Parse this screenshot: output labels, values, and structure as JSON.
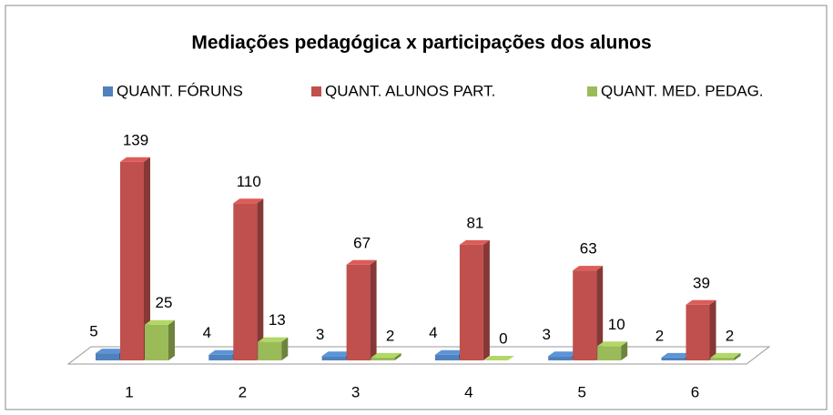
{
  "chart_data": {
    "type": "bar3d",
    "title": "Mediações  pedagógica x participações dos alunos",
    "categories": [
      "1",
      "2",
      "3",
      "4",
      "5",
      "6"
    ],
    "series": [
      {
        "name": "QUANT. FÓRUNS",
        "color": "#4f81bd",
        "values": [
          5,
          4,
          3,
          4,
          3,
          2
        ]
      },
      {
        "name": "QUANT. ALUNOS PART.",
        "color": "#c0504d",
        "values": [
          139,
          110,
          67,
          81,
          63,
          39
        ]
      },
      {
        "name": "QUANT. MED. PEDAG.",
        "color": "#9bbb59",
        "values": [
          25,
          13,
          2,
          0,
          10,
          2
        ]
      }
    ],
    "legend": "top"
  }
}
